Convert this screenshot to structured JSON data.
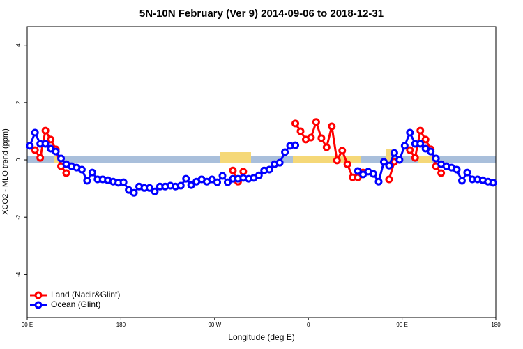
{
  "chart_data": {
    "type": "line",
    "title": "5N-10N February (Ver 9)   2014-09-06 to 2018-12-31",
    "x_label": "Longitude (deg E)",
    "y_label": "XCO2 - MLO trend (ppm)",
    "xlim": [
      90,
      540
    ],
    "ylim": [
      -5.5,
      4.65
    ],
    "xticks": [
      {
        "value": 90,
        "label": "90 E"
      },
      180,
      {
        "value": 270,
        "label": "90 W"
      },
      {
        "value": 360,
        "label": "0"
      },
      {
        "value": 450,
        "label": "90 E"
      },
      {
        "value": 540,
        "label": "180"
      }
    ],
    "yticks": [
      4,
      2,
      0,
      -2,
      -4
    ],
    "legend": "bottom-left",
    "x": [
      92.5,
      97.5,
      102.5,
      107.5,
      112.5,
      117.5,
      122.5,
      127.5,
      132.5,
      137.5,
      142.5,
      147.5,
      152.5,
      157.5,
      162.5,
      167.5,
      172.5,
      177.5,
      182.5,
      187.5,
      192.5,
      197.5,
      202.5,
      207.5,
      212.5,
      217.5,
      222.5,
      227.5,
      232.5,
      237.5,
      242.5,
      247.5,
      252.5,
      257.5,
      262.5,
      267.5,
      272.5,
      277.5,
      282.5,
      287.5,
      292.5,
      297.5,
      302.5,
      307.5,
      312.5,
      317.5,
      322.5,
      327.5,
      332.5,
      337.5,
      342.5,
      347.5,
      352.5,
      357.5,
      362.5,
      367.5,
      372.5,
      377.5,
      382.5,
      387.5,
      392.5,
      397.5,
      402.5,
      407.5,
      412.5,
      417.5,
      422.5,
      427.5,
      432.5,
      437.5,
      442.5,
      447.5,
      452.5,
      457.5,
      462.5,
      467.5,
      472.5,
      477.5,
      482.5,
      487.5,
      492.5,
      497.5,
      502.5,
      507.5,
      512.5,
      517.5,
      522.5,
      527.5,
      532.5,
      537.5
    ],
    "series": [
      {
        "name": "Land (Nadir&Glint)",
        "color": "#ff0000",
        "values": [
          null,
          0.34,
          0.07,
          1.02,
          0.71,
          0.37,
          -0.22,
          -0.46,
          null,
          null,
          null,
          null,
          null,
          null,
          null,
          null,
          null,
          null,
          null,
          null,
          null,
          null,
          null,
          null,
          null,
          null,
          null,
          null,
          null,
          null,
          null,
          null,
          null,
          null,
          null,
          null,
          null,
          null,
          null,
          -0.37,
          -0.76,
          -0.41,
          null,
          null,
          null,
          null,
          null,
          null,
          null,
          null,
          null,
          1.27,
          1.0,
          0.71,
          0.78,
          1.32,
          0.76,
          0.44,
          1.17,
          -0.02,
          0.32,
          -0.15,
          -0.61,
          -0.61,
          -0.44,
          null,
          null,
          null,
          null,
          -0.68,
          -0.07,
          null,
          null,
          0.34,
          0.07,
          1.02,
          0.71,
          0.37,
          -0.22,
          -0.46,
          null,
          null,
          null,
          null,
          null,
          null,
          null,
          null,
          null,
          null
        ]
      },
      {
        "name": "Ocean (Glint)",
        "color": "#0000ff",
        "values": [
          0.49,
          0.95,
          0.56,
          0.56,
          0.39,
          0.29,
          0.05,
          -0.15,
          -0.22,
          -0.27,
          -0.34,
          -0.73,
          -0.44,
          -0.68,
          -0.68,
          -0.71,
          -0.76,
          -0.8,
          -0.78,
          -1.05,
          -1.15,
          -0.93,
          -0.98,
          -0.98,
          -1.1,
          -0.93,
          -0.93,
          -0.9,
          -0.93,
          -0.9,
          -0.66,
          -0.88,
          -0.76,
          -0.68,
          -0.76,
          -0.68,
          -0.78,
          -0.56,
          -0.78,
          -0.66,
          -0.66,
          -0.63,
          -0.66,
          -0.63,
          -0.54,
          -0.37,
          -0.34,
          -0.15,
          -0.1,
          0.27,
          0.49,
          0.51,
          null,
          null,
          null,
          null,
          null,
          null,
          null,
          null,
          null,
          null,
          null,
          -0.39,
          -0.51,
          -0.41,
          -0.49,
          -0.76,
          -0.07,
          -0.2,
          0.24,
          0,
          0.49,
          0.95,
          0.56,
          0.56,
          0.39,
          0.29,
          0.05,
          -0.15,
          -0.22,
          -0.27,
          -0.34,
          -0.73,
          -0.44,
          -0.68,
          -0.68,
          -0.71,
          -0.76,
          -0.8
        ]
      }
    ]
  }
}
